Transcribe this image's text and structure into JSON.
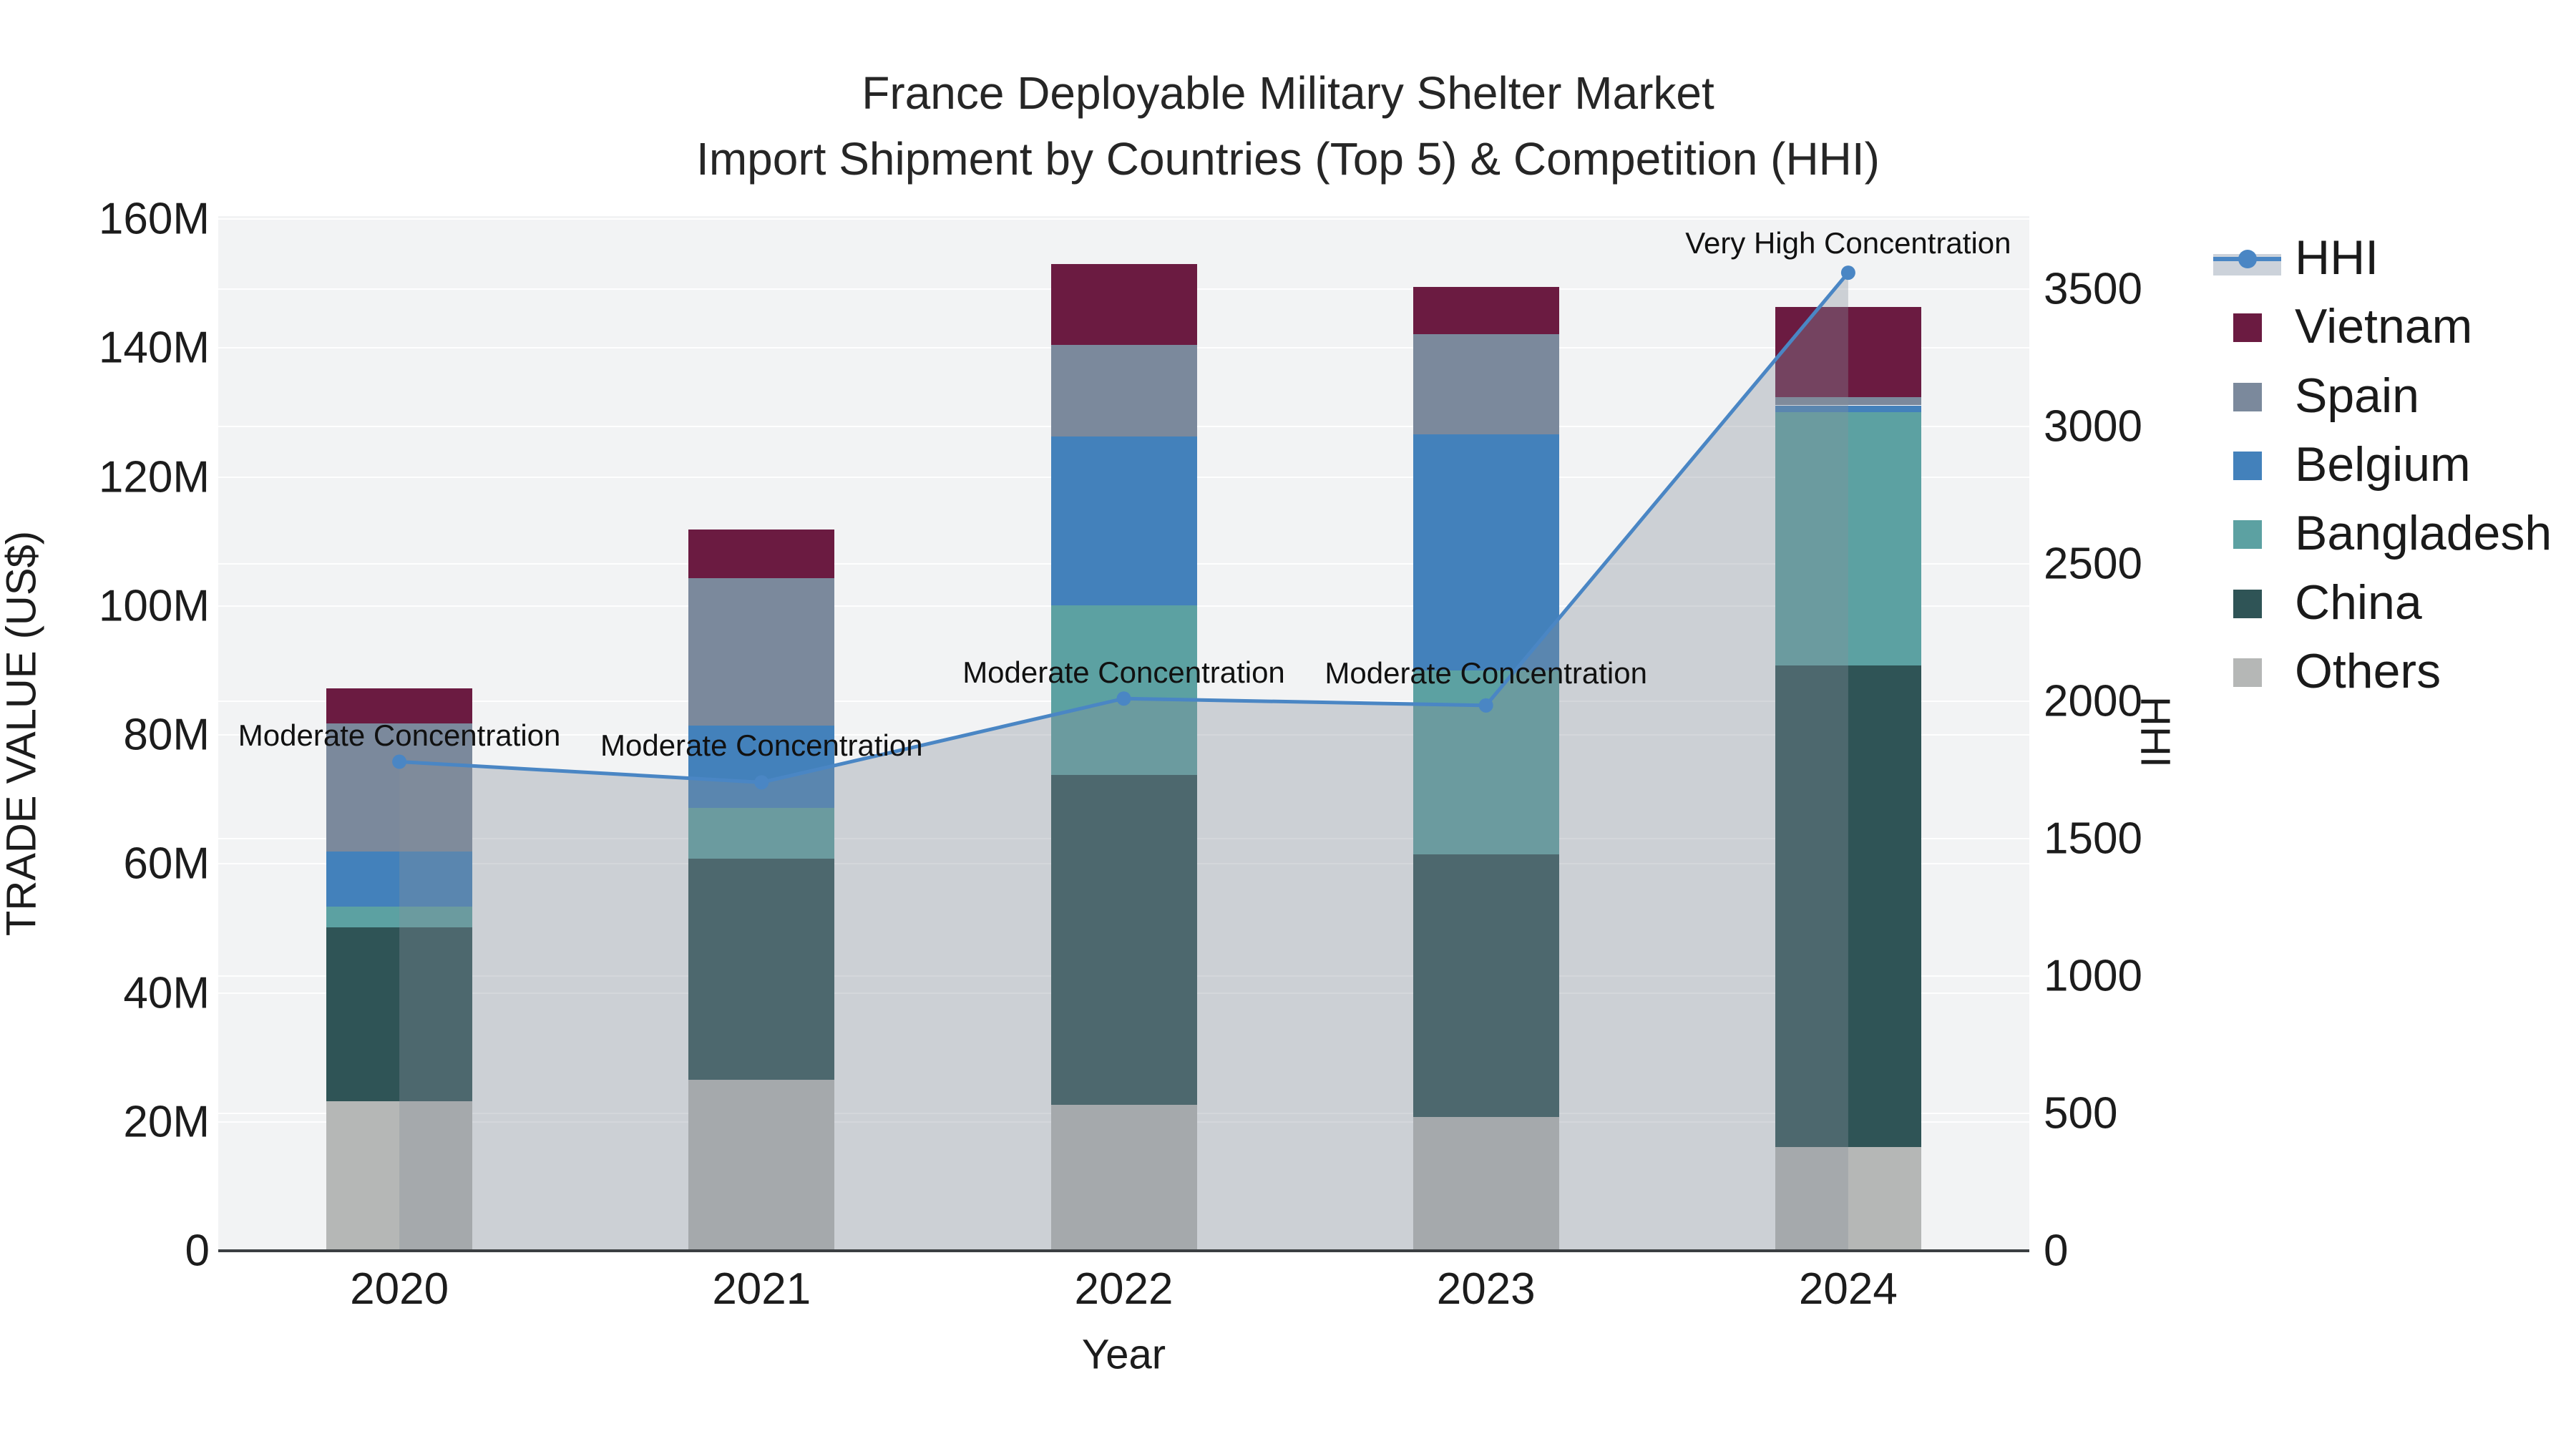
{
  "title": {
    "line1": "France Deployable Military Shelter Market",
    "line2": "Import Shipment by Countries (Top 5) & Competition (HHI)"
  },
  "axes": {
    "y_left_title": "TRADE VALUE (US$)",
    "y_right_title": "HHI",
    "x_title": "Year",
    "y_left_ticks": [
      {
        "v": 0,
        "label": "0"
      },
      {
        "v": 20,
        "label": "20M"
      },
      {
        "v": 40,
        "label": "40M"
      },
      {
        "v": 60,
        "label": "60M"
      },
      {
        "v": 80,
        "label": "80M"
      },
      {
        "v": 100,
        "label": "100M"
      },
      {
        "v": 120,
        "label": "120M"
      },
      {
        "v": 140,
        "label": "140M"
      },
      {
        "v": 160,
        "label": "160M"
      }
    ],
    "y_right_ticks": [
      {
        "v": 0,
        "label": "0"
      },
      {
        "v": 500,
        "label": "500"
      },
      {
        "v": 1000,
        "label": "1000"
      },
      {
        "v": 1500,
        "label": "1500"
      },
      {
        "v": 2000,
        "label": "2000"
      },
      {
        "v": 2500,
        "label": "2500"
      },
      {
        "v": 3000,
        "label": "3000"
      },
      {
        "v": 3500,
        "label": "3500"
      }
    ],
    "y_left_range_max": 160.45,
    "y_right_range_max": 3766
  },
  "colors": {
    "plot_bg": "#f2f3f4",
    "grid": "rgba(255,255,255,0.9)",
    "hhi_line": "#4a86c4",
    "hhi_area_fill": "rgba(134,142,156,0.35)",
    "Vietnam": "#6b1b41",
    "Spain": "#7b899c",
    "Belgium": "#4381bb",
    "Bangladesh": "#5ca1a2",
    "China": "#2f5456",
    "Others": "#b5b7b6"
  },
  "legend": {
    "items": [
      {
        "label": "HHI",
        "kind": "line"
      },
      {
        "label": "Vietnam",
        "kind": "swatch"
      },
      {
        "label": "Spain",
        "kind": "swatch"
      },
      {
        "label": "Belgium",
        "kind": "swatch"
      },
      {
        "label": "Bangladesh",
        "kind": "swatch"
      },
      {
        "label": "China",
        "kind": "swatch"
      },
      {
        "label": "Others",
        "kind": "swatch"
      }
    ]
  },
  "chart_data": {
    "type": "bar+line",
    "title": "France Deployable Military Shelter Market — Import Shipment by Countries (Top 5) & Competition (HHI)",
    "categories": [
      "2020",
      "2021",
      "2022",
      "2023",
      "2024"
    ],
    "bar_unit": "USD millions",
    "stack_order_bottom_to_top": [
      "Others",
      "China",
      "Bangladesh",
      "Belgium",
      "Spain",
      "Vietnam"
    ],
    "series": [
      {
        "name": "Others",
        "values": [
          23.2,
          26.5,
          22.6,
          20.8,
          16.1
        ]
      },
      {
        "name": "China",
        "values": [
          26.9,
          34.3,
          51.2,
          40.7,
          74.7
        ]
      },
      {
        "name": "Bangladesh",
        "values": [
          3.3,
          7.9,
          26.3,
          28.5,
          39.3
        ]
      },
      {
        "name": "Belgium",
        "values": [
          8.5,
          12.8,
          26.2,
          36.6,
          1.0
        ]
      },
      {
        "name": "Spain",
        "values": [
          19.9,
          22.8,
          14.2,
          15.5,
          1.3
        ]
      },
      {
        "name": "Vietnam",
        "values": [
          5.4,
          7.5,
          12.5,
          7.4,
          14.0
        ]
      }
    ],
    "bar_totals": [
      87.2,
      111.8,
      153.0,
      149.5,
      146.4
    ],
    "line_series": {
      "name": "HHI",
      "values": [
        1780,
        1705,
        2010,
        1985,
        3560
      ]
    },
    "annotations": [
      {
        "year_index": 0,
        "text": "Moderate Concentration",
        "dy": -37
      },
      {
        "year_index": 1,
        "text": "Moderate Concentration",
        "dy": -51
      },
      {
        "year_index": 2,
        "text": "Moderate Concentration",
        "dy": -36
      },
      {
        "year_index": 3,
        "text": "Moderate Concentration",
        "dy": -45
      },
      {
        "year_index": 4,
        "text": "Very High Concentration",
        "dy": -41
      }
    ],
    "xlabel": "Year",
    "ylabel_left": "TRADE VALUE (US$)",
    "ylabel_right": "HHI",
    "ylim_left": [
      0,
      160000000
    ],
    "ylim_right": [
      0,
      3500
    ],
    "grid": true,
    "legend_position": "right"
  }
}
